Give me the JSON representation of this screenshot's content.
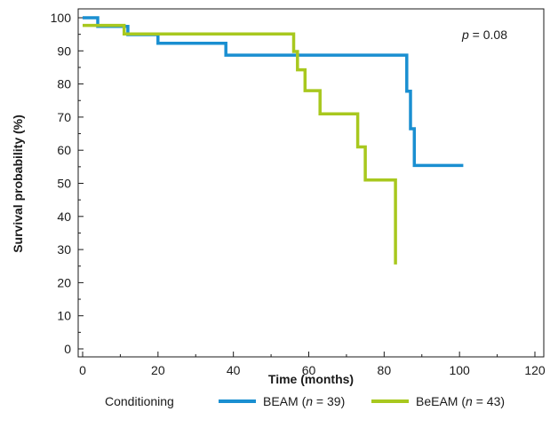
{
  "chart_data": {
    "type": "line",
    "subtype": "kaplan-meier step",
    "xlabel": "Time (months)",
    "ylabel": "Survival probability (%)",
    "xlim": [
      0,
      120
    ],
    "ylim": [
      0,
      100
    ],
    "xticks": [
      "0",
      "20",
      "40",
      "60",
      "80",
      "100",
      "120"
    ],
    "yticks": [
      "0",
      "10",
      "20",
      "30",
      "40",
      "50",
      "60",
      "70",
      "80",
      "90",
      "100"
    ],
    "annotation": {
      "p_symbol": "p",
      "p_rest": " = 0.08"
    },
    "legend_title": "Conditioning",
    "legend_position": "bottom",
    "grid": false,
    "series": [
      {
        "name": "BEAM",
        "n_symbol": "n",
        "n_value": "39",
        "color": "#1a8fd1",
        "steps": [
          [
            0,
            100
          ],
          [
            4,
            100
          ],
          [
            4,
            97.4
          ],
          [
            12,
            97.4
          ],
          [
            12,
            94.9
          ],
          [
            20,
            94.9
          ],
          [
            20,
            92.3
          ],
          [
            38,
            92.3
          ],
          [
            38,
            88.7
          ],
          [
            86,
            88.7
          ],
          [
            86,
            77.8
          ],
          [
            87,
            77.8
          ],
          [
            87,
            66.5
          ],
          [
            88,
            66.5
          ],
          [
            88,
            55.4
          ],
          [
            101,
            55.4
          ]
        ]
      },
      {
        "name": "BeEAM",
        "n_symbol": "n",
        "n_value": "43",
        "color": "#a8c81e",
        "steps": [
          [
            0,
            97.7
          ],
          [
            11,
            97.7
          ],
          [
            11,
            95.1
          ],
          [
            56,
            95.1
          ],
          [
            56,
            89.8
          ],
          [
            57,
            89.8
          ],
          [
            57,
            84.3
          ],
          [
            59,
            84.3
          ],
          [
            59,
            78.0
          ],
          [
            63,
            78.0
          ],
          [
            63,
            71.0
          ],
          [
            73,
            71.0
          ],
          [
            73,
            61.0
          ],
          [
            75,
            61.0
          ],
          [
            75,
            51.0
          ],
          [
            83,
            51.0
          ],
          [
            83,
            25.5
          ]
        ]
      }
    ]
  }
}
